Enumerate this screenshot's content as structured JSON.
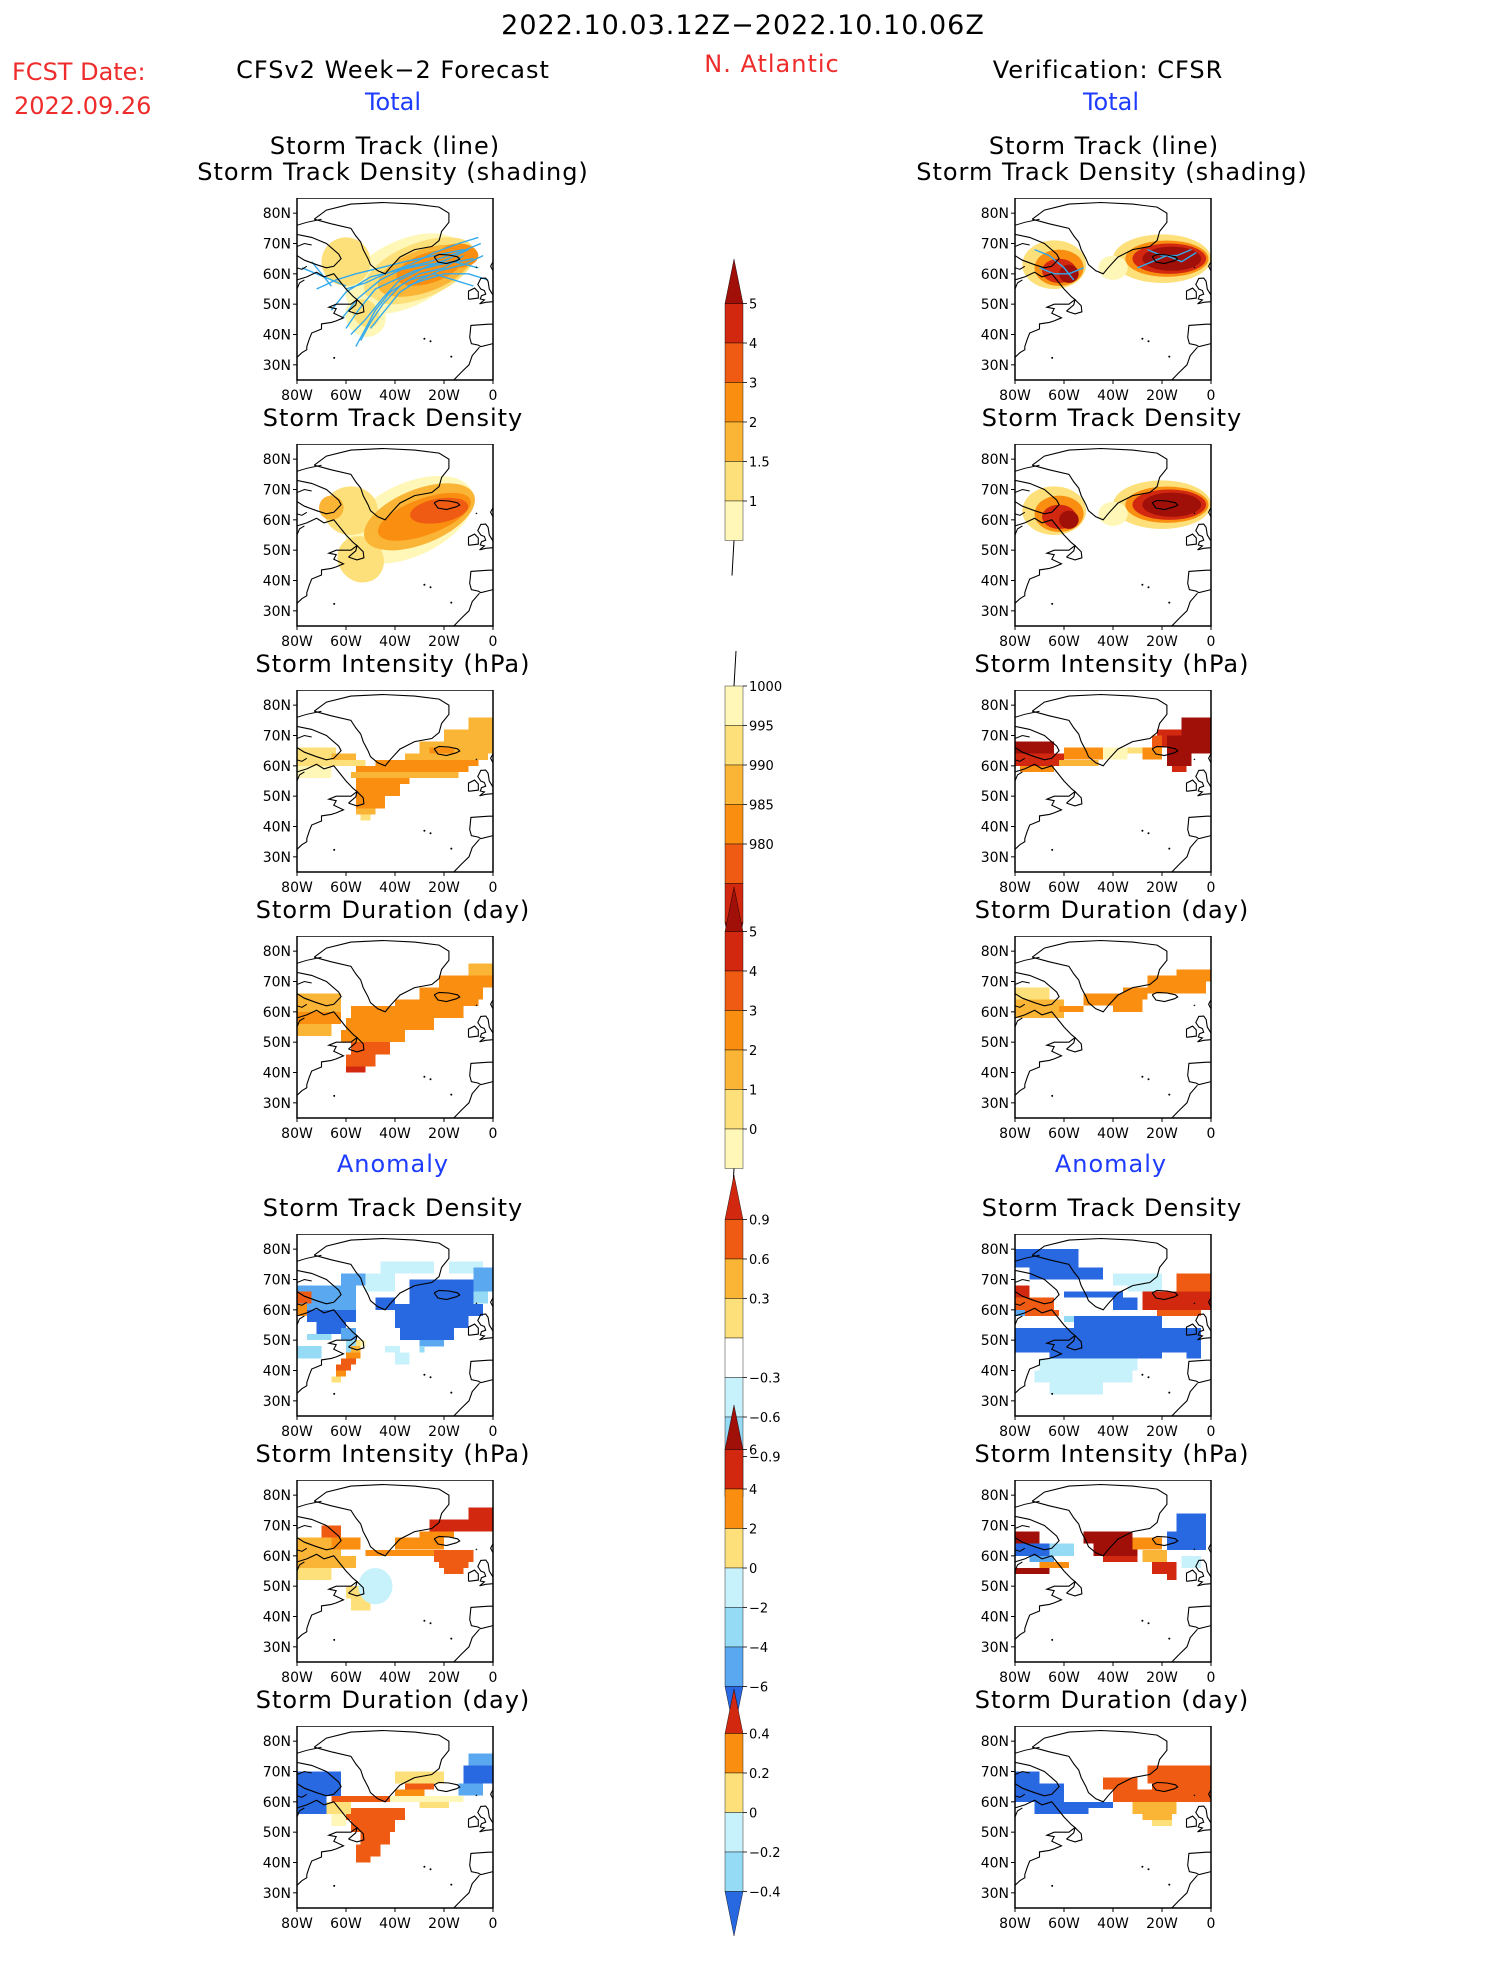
{
  "header": {
    "period": "2022.10.03.12Z−2022.10.10.06Z",
    "fcst_label": "FCST Date:",
    "fcst_date": "2022.09.26",
    "left_title": "CFSv2 Week−2 Forecast",
    "region": "N. Atlantic",
    "right_title": "Verification: CFSR",
    "total_label": "Total",
    "anomaly_label": "Anomaly"
  },
  "panel_titles": {
    "track_line": "Storm Track (line)",
    "track_density_shading": "Storm Track Density (shading)",
    "track_density": "Storm Track Density",
    "intensity": "Storm Intensity (hPa)",
    "duration": "Storm Duration (day)"
  },
  "axis": {
    "lat_ticks": [
      "80N",
      "70N",
      "60N",
      "50N",
      "40N",
      "30N"
    ],
    "lon_ticks": [
      "80W",
      "60W",
      "40W",
      "20W",
      "0"
    ]
  },
  "colors": {
    "track_line": "#33aaee",
    "pos": [
      "#fff7b8",
      "#fde07a",
      "#fbb536",
      "#f98e10",
      "#ef5b12",
      "#d22810",
      "#a01008"
    ],
    "neg": [
      "#c8f2fb",
      "#96dbf5",
      "#5aa8f0",
      "#2868e0",
      "#1446c8"
    ]
  },
  "chart_data": [
    {
      "type": "heatmap",
      "name": "forecast-total-track-density",
      "title": "Storm Track Density (shading)",
      "overlay": "Storm Track (line)",
      "colorbar": [
        "1",
        "1.5",
        "2",
        "3",
        "4",
        "5"
      ]
    },
    {
      "type": "heatmap",
      "name": "forecast-total-intensity",
      "title": "Storm Intensity (hPa)",
      "colorbar": [
        "1000",
        "995",
        "990",
        "985",
        "980"
      ]
    },
    {
      "type": "heatmap",
      "name": "forecast-total-duration",
      "title": "Storm Duration (day)",
      "colorbar": [
        "0",
        "1",
        "2",
        "3",
        "4",
        "5"
      ]
    },
    {
      "type": "heatmap",
      "name": "anomaly-track-density",
      "title": "Storm Track Density",
      "colorbar": [
        "0.9",
        "0.6",
        "0.3",
        "−0.3",
        "−0.6",
        "−0.9"
      ]
    },
    {
      "type": "heatmap",
      "name": "anomaly-intensity",
      "title": "Storm Intensity (hPa)",
      "colorbar": [
        "6",
        "4",
        "2",
        "0",
        "−2",
        "−4",
        "−6"
      ]
    },
    {
      "type": "heatmap",
      "name": "anomaly-duration",
      "title": "Storm Duration (day)",
      "colorbar": [
        "0.4",
        "0.2",
        "0",
        "−0.2",
        "−0.4"
      ]
    }
  ]
}
